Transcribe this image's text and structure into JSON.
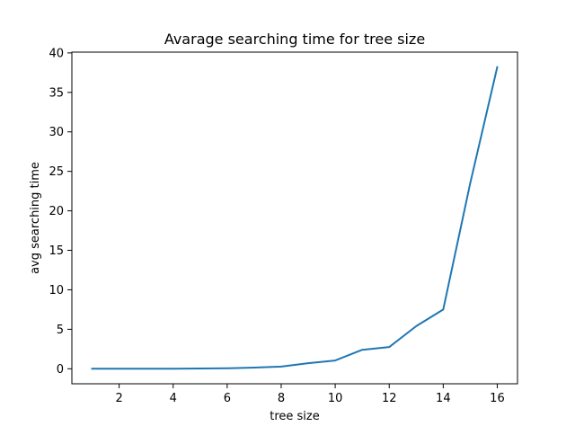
{
  "chart_data": {
    "type": "line",
    "title": "Avarage searching time for tree size",
    "xlabel": "tree size",
    "ylabel": "avg searching time",
    "x": [
      1,
      2,
      3,
      4,
      5,
      6,
      7,
      8,
      9,
      10,
      11,
      12,
      13,
      14,
      15,
      16
    ],
    "series": [
      {
        "values": [
          0.0,
          0.0,
          0.0,
          0.0,
          0.03,
          0.06,
          0.15,
          0.28,
          0.7,
          1.05,
          2.4,
          2.75,
          5.4,
          7.5,
          23.5,
          38.2
        ],
        "color": "#1f77b4"
      }
    ],
    "xlim": [
      0.25,
      16.75
    ],
    "ylim": [
      -1.9,
      40.1
    ],
    "xticks": [
      2,
      4,
      6,
      8,
      10,
      12,
      14,
      16
    ],
    "yticks": [
      0,
      5,
      10,
      15,
      20,
      25,
      30,
      35,
      40
    ],
    "grid": false,
    "legend": "none"
  }
}
